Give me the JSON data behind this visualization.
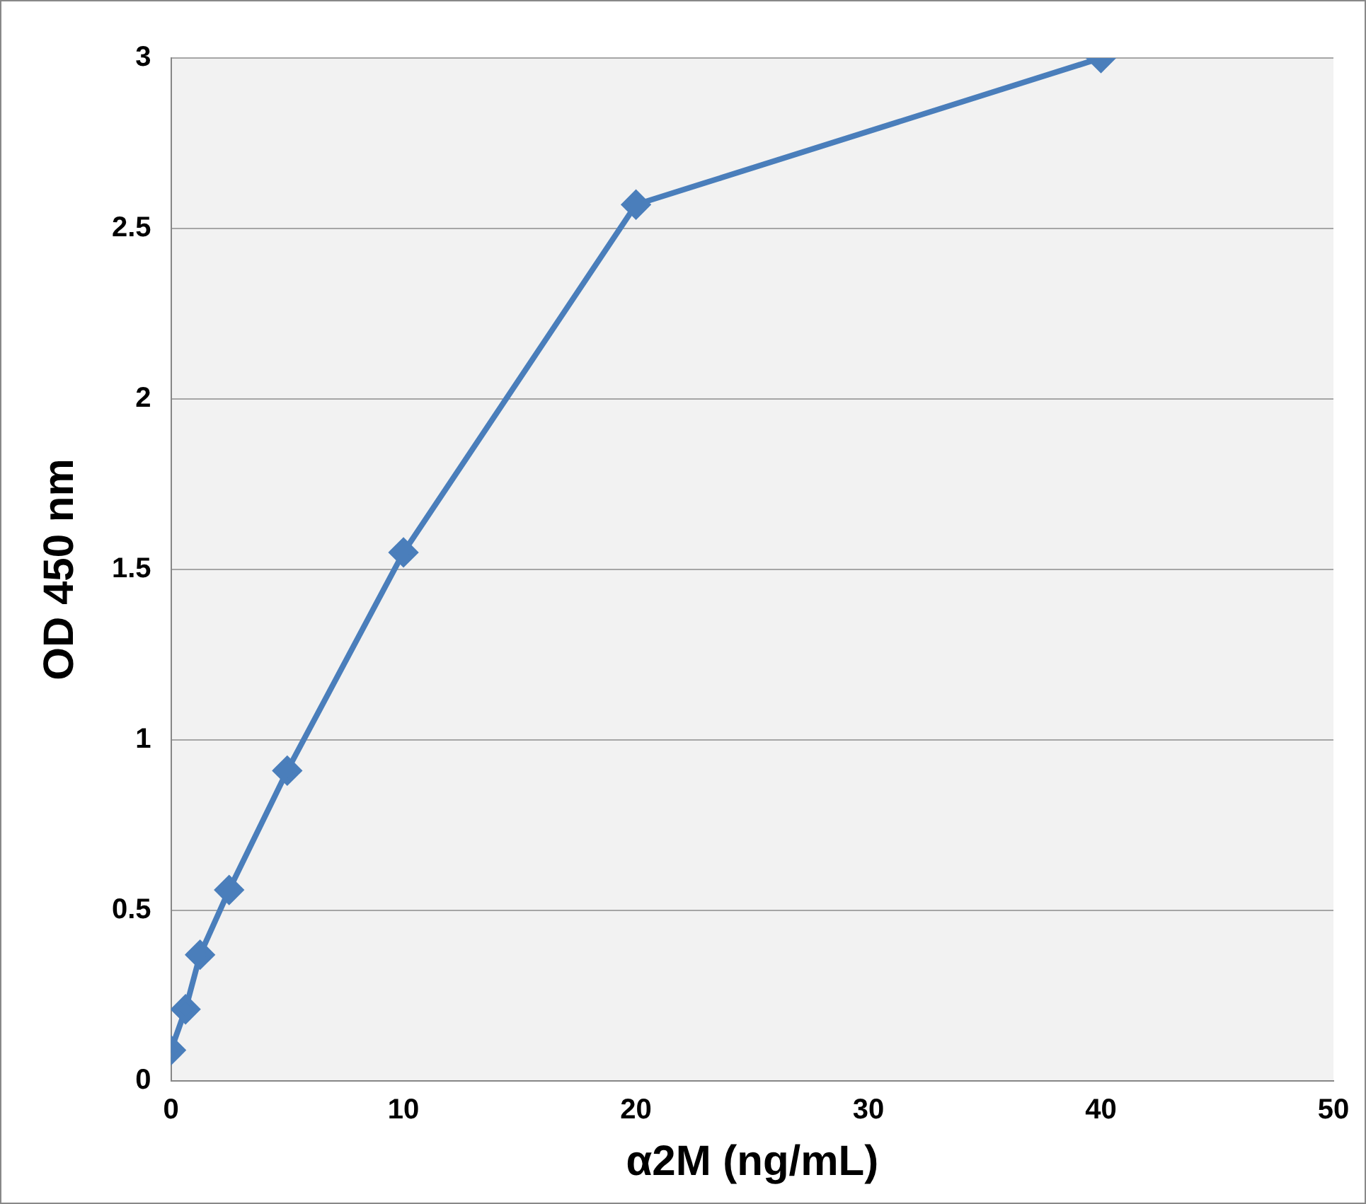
{
  "chart_data": {
    "type": "line",
    "xlabel": "α2M (ng/mL)",
    "ylabel": "OD 450 nm",
    "x": [
      0,
      0.625,
      1.25,
      2.5,
      5,
      10,
      20,
      40
    ],
    "series": [
      {
        "color": "#4a7ebb",
        "values": [
          0.09,
          0.21,
          0.37,
          0.56,
          0.91,
          1.55,
          2.57,
          3.0
        ]
      }
    ],
    "xlim": [
      0,
      50
    ],
    "xticks": [
      0,
      10,
      20,
      30,
      40,
      50
    ],
    "ylim": [
      0,
      3
    ],
    "yticks": [
      0,
      0.5,
      1,
      1.5,
      2,
      2.5,
      3
    ],
    "grid": "y",
    "legend": false,
    "marker": "diamond",
    "line_style": "solid"
  }
}
